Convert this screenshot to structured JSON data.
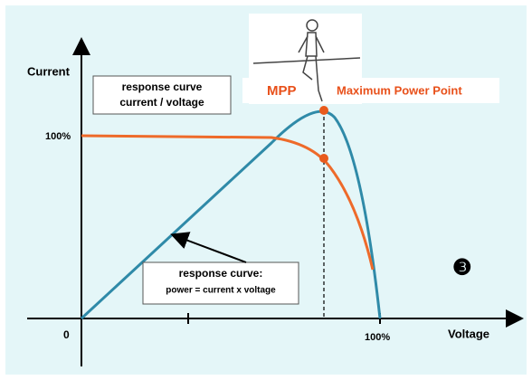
{
  "axes": {
    "y_label": "Current",
    "x_label": "Voltage",
    "y_100": "100%",
    "x_0": "0",
    "x_100": "100%"
  },
  "current_box": {
    "line1": "response curve",
    "line2": "current / voltage"
  },
  "power_box": {
    "line1": "response curve:",
    "line2": "power = current x voltage"
  },
  "mpp": {
    "short": "MPP",
    "long": "Maximum Power Point"
  },
  "step": "❸"
}
